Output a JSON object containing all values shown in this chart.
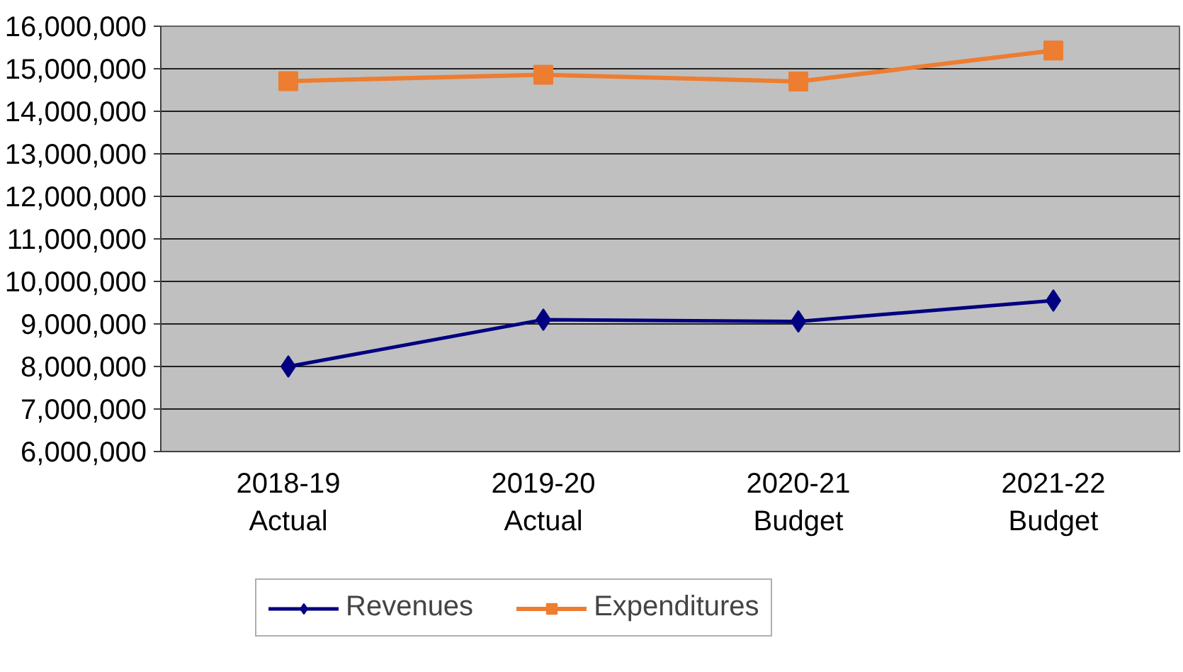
{
  "chart_data": {
    "type": "line",
    "categories": [
      "2018-19\nActual",
      "2019-20\nActual",
      "2020-21\nBudget",
      "2021-22\nBudget"
    ],
    "series": [
      {
        "name": "Revenues",
        "color": "#000080",
        "values": [
          8000000,
          9100000,
          9060000,
          9550000
        ],
        "marker": "diamond"
      },
      {
        "name": "Expenditures",
        "color": "#ed7d31",
        "values": [
          14710000,
          14860000,
          14700000,
          15430000
        ],
        "marker": "square"
      }
    ],
    "ylim": [
      6000000,
      16000000
    ],
    "yticks": [
      {
        "value": 6000000,
        "label": "6,000,000"
      },
      {
        "value": 7000000,
        "label": "7,000,000"
      },
      {
        "value": 8000000,
        "label": "8,000,000"
      },
      {
        "value": 9000000,
        "label": "9,000,000"
      },
      {
        "value": 10000000,
        "label": "10,000,000"
      },
      {
        "value": 11000000,
        "label": "11,000,000"
      },
      {
        "value": 12000000,
        "label": "12,000,000"
      },
      {
        "value": 13000000,
        "label": "13,000,000"
      },
      {
        "value": 14000000,
        "label": "14,000,000"
      },
      {
        "value": 15000000,
        "label": "15,000,000"
      },
      {
        "value": 16000000,
        "label": "16,000,000"
      }
    ],
    "grid": "y",
    "legend": "bottom",
    "line_style": "solid"
  }
}
